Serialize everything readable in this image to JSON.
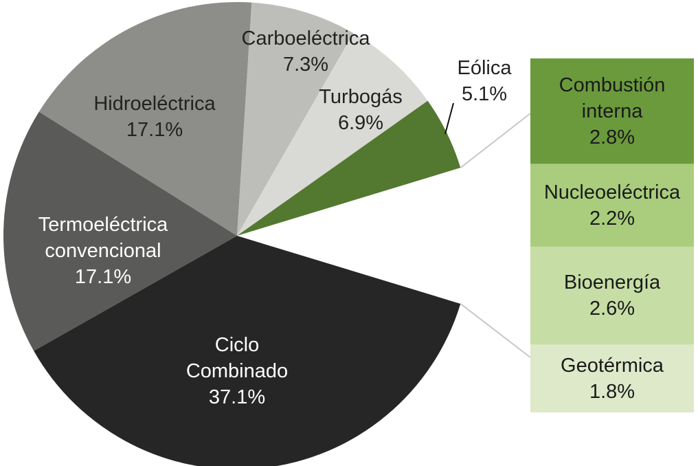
{
  "chart_data": {
    "type": "pie",
    "categories": [
      "Ciclo Combinado",
      "Termoeléctrica convencional",
      "Hidroeléctrica",
      "Carboeléctrica",
      "Turbogás",
      "Eólica"
    ],
    "values": [
      37.1,
      17.1,
      17.1,
      7.3,
      6.9,
      5.1
    ],
    "value_labels": [
      "37.1%",
      "17.1%",
      "17.1%",
      "7.3%",
      "6.9%",
      "5.1%"
    ],
    "colors": [
      "#262626",
      "#5a5a58",
      "#8d8d89",
      "#bdbdb9",
      "#d9d9d6",
      "#53782f"
    ],
    "bar": {
      "categories": [
        "Combustión interna",
        "Nucleoeléctrica",
        "Bioenergía",
        "Geotérmica"
      ],
      "values": [
        2.8,
        2.2,
        2.6,
        1.8
      ],
      "value_labels": [
        "2.8%",
        "2.2%",
        "2.6%",
        "1.8%"
      ],
      "colors": [
        "#6b9a3d",
        "#a9cd7d",
        "#c6dea5",
        "#dde9c9"
      ]
    }
  }
}
